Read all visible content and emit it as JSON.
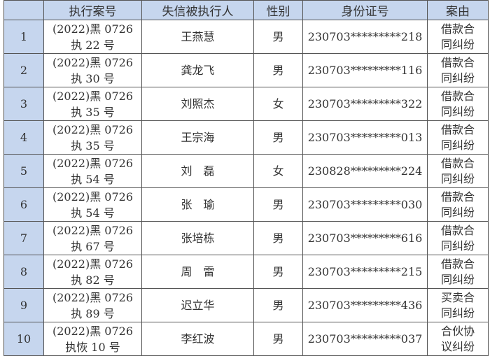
{
  "headers": [
    "",
    "执行案号",
    "失信被执行人",
    "性别",
    "身份证号",
    "案由"
  ],
  "rows": [
    {
      "no": "1",
      "case_line1": "(2022)黑 0726",
      "case_line2": "执 22 号",
      "name": "王燕慧",
      "gender": "男",
      "id": "230703*********218",
      "cause_line1": "借款合",
      "cause_line2": "同纠纷"
    },
    {
      "no": "2",
      "case_line1": "(2022)黑 0726",
      "case_line2": "执 30 号",
      "name": "龚龙飞",
      "gender": "男",
      "id": "230703*********116",
      "cause_line1": "借款合",
      "cause_line2": "同纠纷"
    },
    {
      "no": "3",
      "case_line1": "(2022)黑 0726",
      "case_line2": "执 35 号",
      "name": "刘照杰",
      "gender": "女",
      "id": "230703*********322",
      "cause_line1": "借款合",
      "cause_line2": "同纠纷"
    },
    {
      "no": "4",
      "case_line1": "(2022)黑 0726",
      "case_line2": "执 35 号",
      "name": "王宗海",
      "gender": "男",
      "id": "230703*********013",
      "cause_line1": "借款合",
      "cause_line2": "同纠纷"
    },
    {
      "no": "5",
      "case_line1": "(2022)黑 0726",
      "case_line2": "执 54 号",
      "name": "刘　磊",
      "gender": "女",
      "id": "230828*********224",
      "cause_line1": "借款合",
      "cause_line2": "同纠纷"
    },
    {
      "no": "6",
      "case_line1": "(2022)黑 0726",
      "case_line2": "执 54 号",
      "name": "张　瑜",
      "gender": "男",
      "id": "230703*********030",
      "cause_line1": "借款合",
      "cause_line2": "同纠纷"
    },
    {
      "no": "7",
      "case_line1": "(2022)黑 0726",
      "case_line2": "执 67 号",
      "name": "张培栋",
      "gender": "男",
      "id": "230703*********616",
      "cause_line1": "借款合",
      "cause_line2": "同纠纷"
    },
    {
      "no": "8",
      "case_line1": "(2022)黑 0726",
      "case_line2": "执 82 号",
      "name": "周　雷",
      "gender": "男",
      "id": "230703*********215",
      "cause_line1": "借款合",
      "cause_line2": "同纠纷"
    },
    {
      "no": "9",
      "case_line1": "(2022)黑 0726",
      "case_line2": "执 89 号",
      "name": "迟立华",
      "gender": "男",
      "id": "230703*********436",
      "cause_line1": "买卖合",
      "cause_line2": "同纠纷"
    },
    {
      "no": "10",
      "case_line1": "(2022)黑 0726",
      "case_line2": "执恢 10 号",
      "name": "李红波",
      "gender": "男",
      "id": "230703*********037",
      "cause_line1": "合伙协",
      "cause_line2": "议纠纷"
    }
  ],
  "colors": {
    "header_bg": "#c6d6ee",
    "border": "#555555"
  }
}
